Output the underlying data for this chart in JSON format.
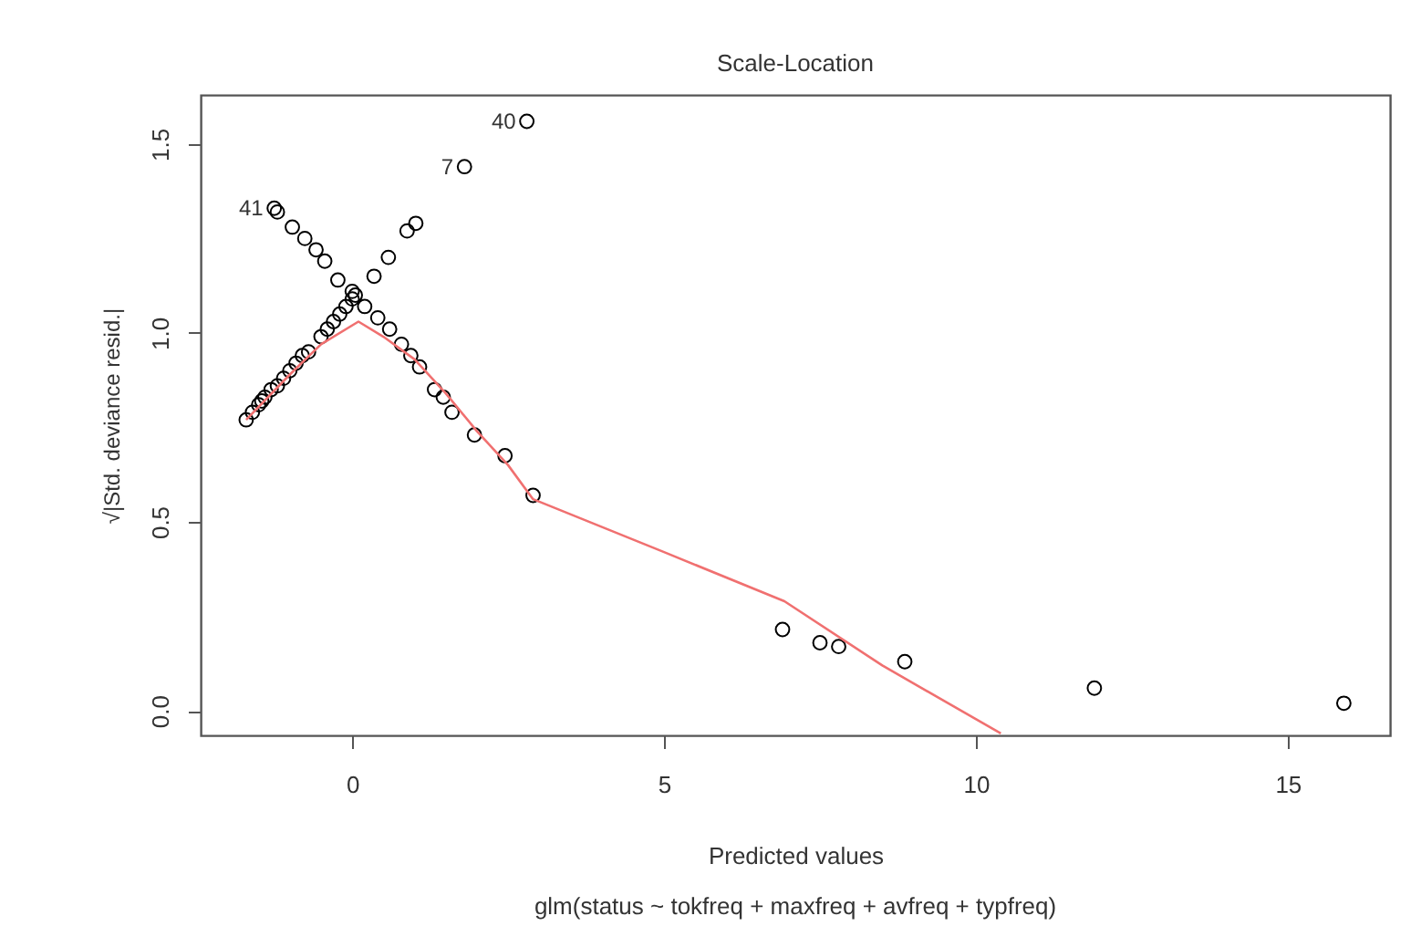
{
  "chart_data": {
    "type": "scatter",
    "title": "Scale-Location",
    "xlabel": "Predicted values",
    "ylabel": "√|Std. deviance resid.|",
    "annotations": [
      {
        "text": "40",
        "x": 2.8,
        "y": 1.56
      },
      {
        "text": "7",
        "x": 1.8,
        "y": 1.44
      },
      {
        "text": "41",
        "x": -1.25,
        "y": 1.33
      },
      "glm(status ~ tokfreq + maxfreq + avfreq + typfreq)"
    ],
    "xlim": [
      -2.43,
      16.64
    ],
    "ylim": [
      -0.065,
      1.63
    ],
    "xticks": [
      0,
      5,
      10,
      15
    ],
    "yticks": [
      {
        "value": 0,
        "label": "0.0"
      },
      {
        "value": 0.5,
        "label": "0.5"
      },
      {
        "value": 1,
        "label": "1.0"
      },
      {
        "value": 1.5,
        "label": "1.5"
      }
    ],
    "series": [
      {
        "marker": "circle",
        "color": "#000000",
        "x": [
          -1.7,
          -1.6,
          -1.5,
          -1.45,
          -1.4,
          -1.3,
          -1.2,
          -1.1,
          -1.0,
          -0.9,
          -0.8,
          -0.7,
          -0.5,
          -0.4,
          -0.3,
          -0.2,
          -0.1,
          0.0,
          0.35,
          0.58,
          0.88,
          1.02,
          -1.2,
          -0.96,
          -0.76,
          -0.58,
          -0.44,
          -0.23,
          0.0,
          0.05,
          0.2,
          0.41,
          0.6,
          0.79,
          0.94,
          1.08,
          1.32,
          1.46,
          1.6,
          1.96,
          2.45,
          2.9,
          2.8,
          1.8,
          -1.25,
          6.9,
          7.5,
          7.8,
          8.86,
          11.9,
          15.9
        ],
        "values": [
          0.77,
          0.79,
          0.81,
          0.82,
          0.83,
          0.85,
          0.86,
          0.88,
          0.9,
          0.92,
          0.94,
          0.95,
          0.99,
          1.01,
          1.03,
          1.05,
          1.07,
          1.09,
          1.15,
          1.2,
          1.27,
          1.29,
          1.32,
          1.28,
          1.25,
          1.22,
          1.19,
          1.14,
          1.11,
          1.1,
          1.07,
          1.04,
          1.01,
          0.97,
          0.94,
          0.91,
          0.85,
          0.83,
          0.79,
          0.73,
          0.675,
          0.57,
          1.56,
          1.44,
          1.33,
          0.215,
          0.18,
          0.17,
          0.13,
          0.06,
          0.02
        ]
      },
      {
        "type": "line",
        "marker": "none",
        "color": "#f07070",
        "x": [
          -1.7,
          -1.0,
          -0.5,
          0.1,
          0.5,
          1.0,
          1.5,
          2.0,
          2.5,
          2.9,
          5.0,
          6.93,
          8.5,
          10.4
        ],
        "values": [
          0.77,
          0.89,
          0.97,
          1.03,
          0.99,
          0.93,
          0.84,
          0.74,
          0.65,
          0.56,
          0.42,
          0.29,
          0.12,
          -0.06
        ]
      }
    ]
  }
}
